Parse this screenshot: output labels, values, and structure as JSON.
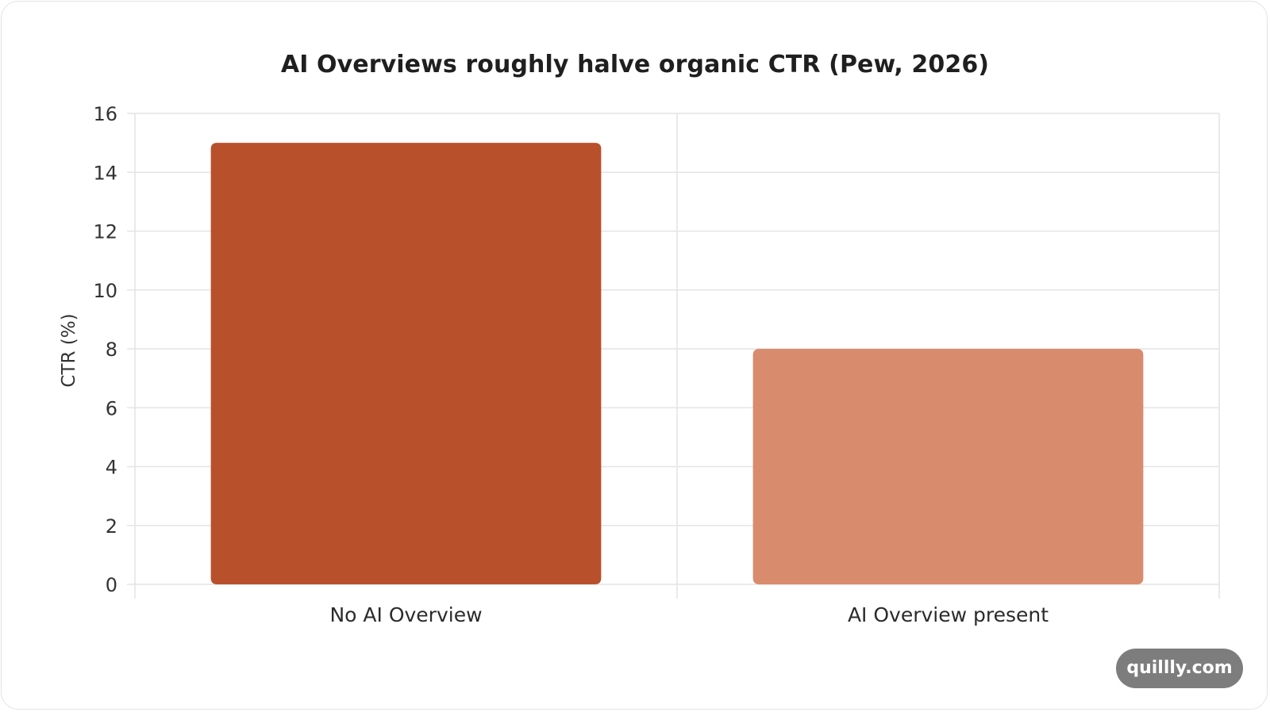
{
  "chart_data": {
    "type": "bar",
    "title": "AI Overviews roughly halve organic CTR (Pew, 2026)",
    "xlabel": "",
    "ylabel": "CTR (%)",
    "categories": [
      "No AI Overview",
      "AI Overview present"
    ],
    "values": [
      15,
      8
    ],
    "colors": [
      "#b9502c",
      "#d98b6d"
    ],
    "ylim": [
      0,
      16
    ],
    "yticks": [
      0,
      2,
      4,
      6,
      8,
      10,
      12,
      14,
      16
    ],
    "grid": true,
    "legend": "none"
  },
  "watermark": "quillly.com"
}
